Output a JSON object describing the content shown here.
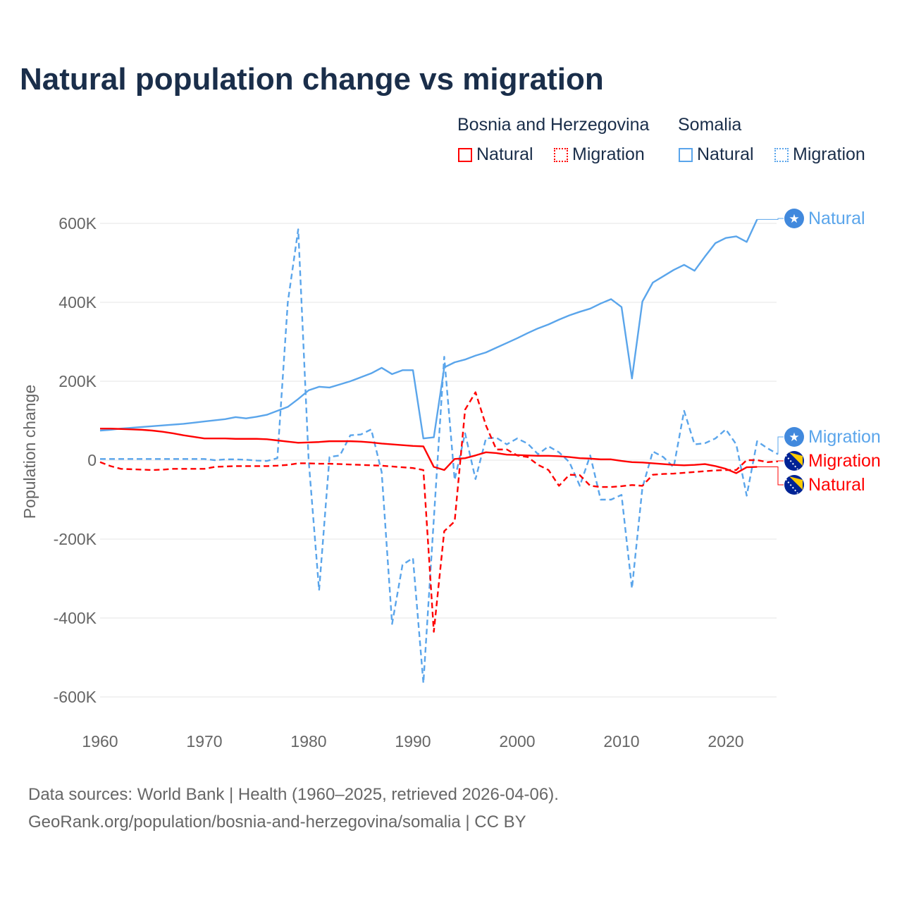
{
  "title": "Natural population change vs migration",
  "legend": {
    "groups": [
      {
        "name": "Bosnia and Herzegovina",
        "color": "#ff0000",
        "items": [
          "Natural",
          "Migration"
        ]
      },
      {
        "name": "Somalia",
        "color": "#5aa5eb",
        "items": [
          "Natural",
          "Migration"
        ]
      }
    ]
  },
  "footer": {
    "line1": "Data sources: World Bank | Health (1960–2025, retrieved 2026-04-06).",
    "line2": "GeoRank.org/population/bosnia-and-herzegovina/somalia | CC BY"
  },
  "chart_data": {
    "type": "line",
    "title": "Natural population change vs migration",
    "xlabel": "",
    "ylabel": "Population change",
    "xlim": [
      1960,
      2025
    ],
    "ylim": [
      -650000,
      650000
    ],
    "xticks": [
      1960,
      1970,
      1980,
      1990,
      2000,
      2010,
      2020
    ],
    "yticks": [
      {
        "v": 600000,
        "label": "600K"
      },
      {
        "v": 400000,
        "label": "400K"
      },
      {
        "v": 200000,
        "label": "200K"
      },
      {
        "v": 0,
        "label": "0"
      },
      {
        "v": -200000,
        "label": "-200K"
      },
      {
        "v": -400000,
        "label": "-400K"
      },
      {
        "v": -600000,
        "label": "-600K"
      }
    ],
    "series": [
      {
        "name": "Somalia Natural",
        "label": "Natural",
        "country": "Somalia",
        "color": "#5aa5eb",
        "dash": false,
        "start": 1960,
        "values": [
          75,
          77,
          80,
          82,
          84,
          86,
          88,
          90,
          92,
          95,
          98,
          101,
          104,
          109,
          106,
          110,
          115,
          125,
          135,
          155,
          177,
          186,
          184,
          192,
          200,
          210,
          220,
          234,
          218,
          228,
          228,
          55,
          58,
          235,
          248,
          255,
          265,
          273,
          285,
          297,
          309,
          322,
          334,
          344,
          356,
          367,
          376,
          384,
          397,
          408,
          388,
          207,
          402,
          450,
          466,
          482,
          495,
          480,
          516,
          550,
          563,
          567,
          553,
          610
        ]
      },
      {
        "name": "Somalia Migration",
        "label": "Migration",
        "country": "Somalia",
        "color": "#5aa5eb",
        "dash": true,
        "start": 1960,
        "values": [
          3,
          3,
          3,
          3,
          3,
          3,
          3,
          3,
          3,
          3,
          3,
          0,
          2,
          2,
          1,
          -1,
          -2,
          5,
          400,
          585,
          0,
          -330,
          8,
          12,
          63,
          65,
          78,
          -30,
          -415,
          -265,
          -248,
          -565,
          -150,
          262,
          -50,
          68,
          -48,
          55,
          57,
          40,
          55,
          42,
          15,
          35,
          20,
          -5,
          -65,
          12,
          -100,
          -100,
          -88,
          -325,
          -70,
          22,
          8,
          -18,
          125,
          40,
          43,
          55,
          78,
          40,
          -90,
          48,
          30,
          15
        ]
      },
      {
        "name": "Bosnia and Herzegovina Migration",
        "label": "Migration",
        "country": "Bosnia and Herzegovina",
        "color": "#ff0000",
        "dash": true,
        "start": 1960,
        "values": [
          -5,
          -15,
          -22,
          -23,
          -24,
          -25,
          -24,
          -22,
          -22,
          -22,
          -22,
          -17,
          -16,
          -15,
          -15,
          -15,
          -15,
          -14,
          -12,
          -8,
          -8,
          -9,
          -9,
          -10,
          -11,
          -12,
          -13,
          -14,
          -16,
          -18,
          -20,
          -25,
          -435,
          -180,
          -155,
          128,
          172,
          88,
          27,
          27,
          12,
          8,
          -12,
          -25,
          -65,
          -37,
          -38,
          -65,
          -68,
          -68,
          -66,
          -63,
          -65,
          -37,
          -35,
          -34,
          -32,
          -30,
          -28,
          -26,
          -25,
          -25,
          0,
          0,
          -5,
          -3
        ]
      },
      {
        "name": "Bosnia and Herzegovina Natural",
        "label": "Natural",
        "country": "Bosnia and Herzegovina",
        "color": "#ff0000",
        "dash": false,
        "start": 1960,
        "values": [
          80,
          80,
          79,
          78,
          77,
          75,
          72,
          68,
          63,
          59,
          55,
          55,
          55,
          54,
          54,
          54,
          53,
          50,
          47,
          44,
          45,
          46,
          48,
          48,
          48,
          47,
          45,
          42,
          40,
          38,
          36,
          35,
          -17,
          -25,
          3,
          5,
          12,
          20,
          18,
          14,
          13,
          12,
          11,
          11,
          10,
          8,
          5,
          4,
          2,
          2,
          -2,
          -5,
          -6,
          -8,
          -10,
          -12,
          -13,
          -12,
          -10,
          -15,
          -22,
          -33,
          -18,
          -17
        ]
      }
    ],
    "values_unit": "thousands"
  }
}
